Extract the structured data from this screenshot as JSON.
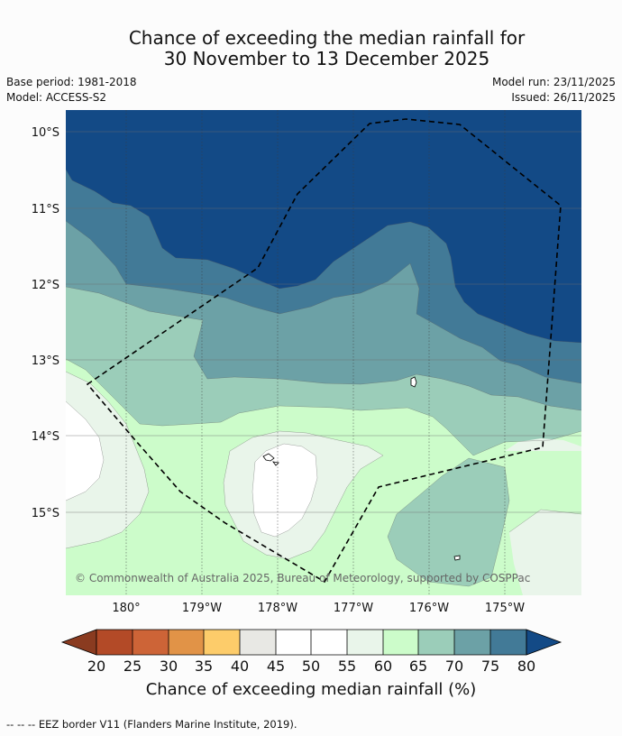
{
  "header": {
    "title_line1": "Chance of exceeding the median rainfall for",
    "title_line2": "30 November to 13 December 2025",
    "base_period": "Base period: 1981-2018",
    "model": "Model: ACCESS-S2",
    "model_run": "Model run: 23/11/2025",
    "issued": "Issued: 26/11/2025"
  },
  "map": {
    "lat_labels": [
      "10°S",
      "11°S",
      "12°S",
      "13°S",
      "14°S",
      "15°S"
    ],
    "lon_labels": [
      "180°",
      "179°W",
      "178°W",
      "177°W",
      "176°W",
      "175°W"
    ],
    "copyright": "© Commonwealth of Australia 2025, Bureau of Meteorology, supported by COSPPac",
    "eez_border": "EEZ border"
  },
  "colorbar": {
    "label": "Chance of exceeding median rainfall (%)",
    "ticks": [
      "20",
      "25",
      "30",
      "35",
      "40",
      "45",
      "50",
      "55",
      "60",
      "65",
      "70",
      "75",
      "80"
    ],
    "colors": {
      "below_20": "#8a3b20",
      "c20_25": "#b34a27",
      "c25_30": "#cd6437",
      "c30_35": "#e19347",
      "c35_40": "#fdcc6a",
      "c40_45": "#e8e8e4",
      "c45_50": "#ffffff",
      "c50_55": "#ffffff",
      "c55_60": "#e9f5ea",
      "c60_65": "#ccfcca",
      "c65_70": "#9bcdb9",
      "c70_75": "#6ca1a6",
      "c75_80": "#427a97",
      "above_80": "#134a86"
    }
  },
  "footer": {
    "legend_text": "--  --  -- EEZ border V11 (Flanders Marine Institute, 2019)."
  }
}
